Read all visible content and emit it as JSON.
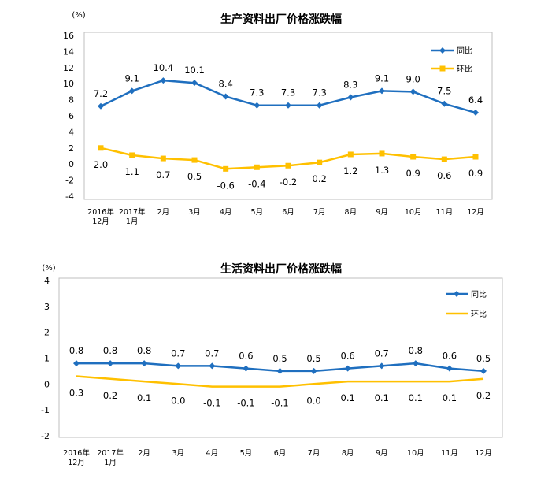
{
  "chart_data": [
    {
      "type": "line",
      "title": "生产资料出厂价格涨跌幅",
      "unit": "(%)",
      "categories": [
        [
          "2016年",
          "12月"
        ],
        [
          "2017年",
          "1月"
        ],
        [
          "2月"
        ],
        [
          "3月"
        ],
        [
          "4月"
        ],
        [
          "5月"
        ],
        [
          "6月"
        ],
        [
          "7月"
        ],
        [
          "8月"
        ],
        [
          "9月"
        ],
        [
          "10月"
        ],
        [
          "11月"
        ],
        [
          "12月"
        ]
      ],
      "yticks": [
        "16",
        "14",
        "12",
        "10",
        "8",
        "6",
        "4",
        "2",
        "0",
        "-2",
        "-4"
      ],
      "ylim": [
        -4,
        16
      ],
      "series": [
        {
          "name": "同比",
          "color": "#1F6FBF",
          "marker": "diamond",
          "values": [
            7.2,
            9.1,
            10.4,
            10.1,
            8.4,
            7.3,
            7.3,
            7.3,
            8.3,
            9.1,
            9.0,
            7.5,
            6.4
          ],
          "labels": [
            "7.2",
            "9.1",
            "10.4",
            "10.1",
            "8.4",
            "7.3",
            "7.3",
            "7.3",
            "8.3",
            "9.1",
            "9.0",
            "7.5",
            "6.4"
          ]
        },
        {
          "name": "环比",
          "color": "#FFC000",
          "marker": "square",
          "values": [
            2.0,
            1.1,
            0.7,
            0.5,
            -0.6,
            -0.4,
            -0.2,
            0.2,
            1.2,
            1.3,
            0.9,
            0.6,
            0.9
          ],
          "labels": [
            "2.0",
            "1.1",
            "0.7",
            "0.5",
            "-0.6",
            "-0.4",
            "-0.2",
            "0.2",
            "1.2",
            "1.3",
            "0.9",
            "0.6",
            "0.9"
          ]
        }
      ],
      "legend": "top-right",
      "grid": false
    },
    {
      "type": "line",
      "title": "生活资料出厂价格涨跌幅",
      "unit": "(%)",
      "categories": [
        [
          "2016年",
          "12月"
        ],
        [
          "2017年",
          "1月"
        ],
        [
          "2月"
        ],
        [
          "3月"
        ],
        [
          "4月"
        ],
        [
          "5月"
        ],
        [
          "6月"
        ],
        [
          "7月"
        ],
        [
          "8月"
        ],
        [
          "9月"
        ],
        [
          "10月"
        ],
        [
          "11月"
        ],
        [
          "12月"
        ]
      ],
      "yticks": [
        "4",
        "3",
        "2",
        "1",
        "0",
        "-1",
        "-2"
      ],
      "ylim": [
        -2,
        4
      ],
      "series": [
        {
          "name": "同比",
          "color": "#1F6FBF",
          "marker": "diamond",
          "values": [
            0.8,
            0.8,
            0.8,
            0.7,
            0.7,
            0.6,
            0.5,
            0.5,
            0.6,
            0.7,
            0.8,
            0.6,
            0.5
          ],
          "labels": [
            "0.8",
            "0.8",
            "0.8",
            "0.7",
            "0.7",
            "0.6",
            "0.5",
            "0.5",
            "0.6",
            "0.7",
            "0.8",
            "0.6",
            "0.5"
          ]
        },
        {
          "name": "环比",
          "color": "#FFC000",
          "marker": "none",
          "values": [
            0.3,
            0.2,
            0.1,
            0.0,
            -0.1,
            -0.1,
            -0.1,
            0.0,
            0.1,
            0.1,
            0.1,
            0.1,
            0.2
          ],
          "labels": [
            "0.3",
            "0.2",
            "0.1",
            "0.0",
            "-0.1",
            "-0.1",
            "-0.1",
            "0.0",
            "0.1",
            "0.1",
            "0.1",
            "0.1",
            "0.2"
          ]
        }
      ],
      "legend": "top-right",
      "grid": false
    }
  ]
}
